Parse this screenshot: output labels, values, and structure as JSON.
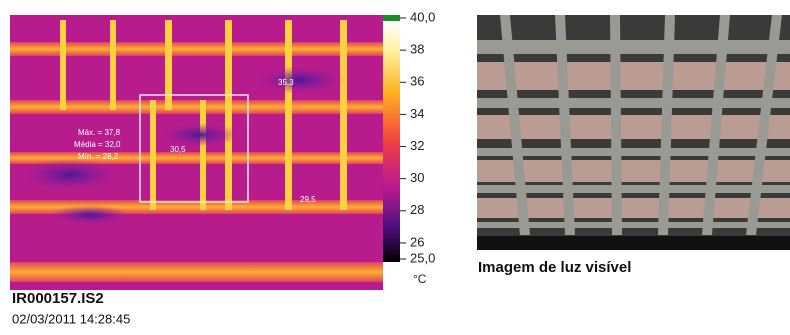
{
  "thermal_image": {
    "annotations": {
      "stats": [
        "Máx. = 37,8",
        "Média = 32,0",
        "Mín. = 28,2"
      ],
      "box_center": "30,5",
      "spot_1": "35,3",
      "spot_2": "29,5"
    },
    "scale": {
      "max": 40,
      "min": 25,
      "unit": "°C",
      "ticks": [
        {
          "value": 40,
          "label": "40,0"
        },
        38,
        36,
        34,
        32,
        30,
        28,
        26,
        {
          "value": 25,
          "label": "25,0"
        }
      ]
    },
    "file_name": "IR000157.IS2",
    "timestamp": "02/03/2011 14:28:45"
  },
  "visible_image": {
    "caption": "Imagem de luz visível"
  }
}
